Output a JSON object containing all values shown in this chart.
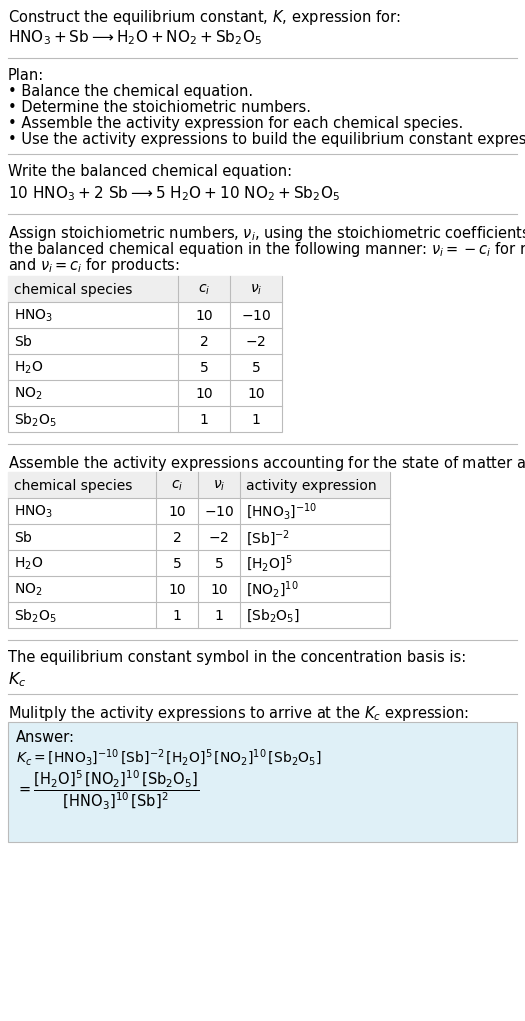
{
  "title_line1": "Construct the equilibrium constant, $K$, expression for:",
  "title_line2": "$\\mathrm{HNO_3 + Sb \\longrightarrow H_2O + NO_2 + Sb_2O_5}$",
  "plan_header": "Plan:",
  "plan_items": [
    "• Balance the chemical equation.",
    "• Determine the stoichiometric numbers.",
    "• Assemble the activity expression for each chemical species.",
    "• Use the activity expressions to build the equilibrium constant expression."
  ],
  "balanced_header": "Write the balanced chemical equation:",
  "balanced_eq": "$\\mathrm{10\\ HNO_3 + 2\\ Sb \\longrightarrow 5\\ H_2O + 10\\ NO_2 + Sb_2O_5}$",
  "stoich_text": [
    "Assign stoichiometric numbers, $\\nu_i$, using the stoichiometric coefficients, $c_i$, from",
    "the balanced chemical equation in the following manner: $\\nu_i = -c_i$ for reactants",
    "and $\\nu_i = c_i$ for products:"
  ],
  "table1_headers": [
    "chemical species",
    "$c_i$",
    "$\\nu_i$"
  ],
  "table1_data": [
    [
      "$\\mathrm{HNO_3}$",
      "10",
      "$-10$"
    ],
    [
      "$\\mathrm{Sb}$",
      "2",
      "$-2$"
    ],
    [
      "$\\mathrm{H_2O}$",
      "5",
      "5"
    ],
    [
      "$\\mathrm{NO_2}$",
      "10",
      "10"
    ],
    [
      "$\\mathrm{Sb_2O_5}$",
      "1",
      "1"
    ]
  ],
  "activity_header": "Assemble the activity expressions accounting for the state of matter and $\\nu_i$:",
  "table2_headers": [
    "chemical species",
    "$c_i$",
    "$\\nu_i$",
    "activity expression"
  ],
  "table2_data": [
    [
      "$\\mathrm{HNO_3}$",
      "10",
      "$-10$",
      "$[\\mathrm{HNO_3}]^{-10}$"
    ],
    [
      "$\\mathrm{Sb}$",
      "2",
      "$-2$",
      "$[\\mathrm{Sb}]^{-2}$"
    ],
    [
      "$\\mathrm{H_2O}$",
      "5",
      "5",
      "$[\\mathrm{H_2O}]^5$"
    ],
    [
      "$\\mathrm{NO_2}$",
      "10",
      "10",
      "$[\\mathrm{NO_2}]^{10}$"
    ],
    [
      "$\\mathrm{Sb_2O_5}$",
      "1",
      "1",
      "$[\\mathrm{Sb_2O_5}]$"
    ]
  ],
  "kc_header": "The equilibrium constant symbol in the concentration basis is:",
  "kc_symbol": "$K_c$",
  "multiply_header": "Mulitply the activity expressions to arrive at the $K_c$ expression:",
  "answer_label": "Answer:",
  "kc_line1": "$K_c = [\\mathrm{HNO_3}]^{-10}\\,[\\mathrm{Sb}]^{-2}\\,[\\mathrm{H_2O}]^5\\,[\\mathrm{NO_2}]^{10}\\,[\\mathrm{Sb_2O_5}]$",
  "kc_equals": "$= \\dfrac{[\\mathrm{H_2O}]^5\\,[\\mathrm{NO_2}]^{10}\\,[\\mathrm{Sb_2O_5}]}{[\\mathrm{HNO_3}]^{10}\\,[\\mathrm{Sb}]^2}$",
  "bg_color": "#ffffff",
  "answer_bg": "#dff0f7",
  "header_bg": "#eeeeee",
  "line_color": "#bbbbbb",
  "text_color": "#000000"
}
